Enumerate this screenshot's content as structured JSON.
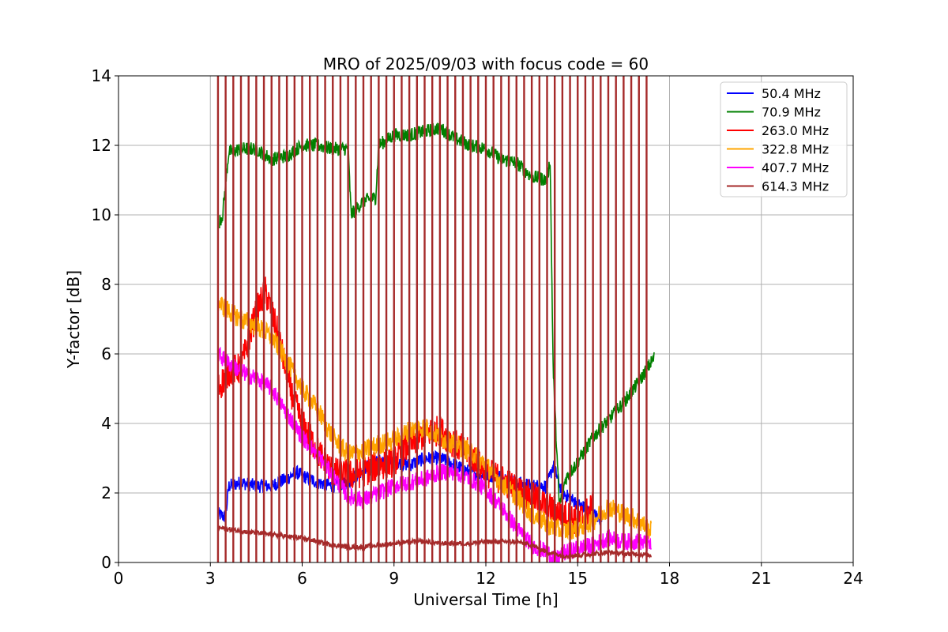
{
  "chart_data": {
    "type": "line",
    "title": "MRO of 2025/09/03 with focus code = 60",
    "xlabel": "Universal Time [h]",
    "ylabel": "Y-factor [dB]",
    "xlim": [
      0,
      24
    ],
    "ylim": [
      0,
      14
    ],
    "xticks": [
      0,
      3,
      6,
      9,
      12,
      15,
      18,
      21,
      24
    ],
    "yticks": [
      0,
      2,
      4,
      6,
      8,
      10,
      12,
      14
    ],
    "grid": true,
    "legend_position": "top-right",
    "spikes": {
      "description_visible": false,
      "start": 3.25,
      "end": 17.35,
      "interval": 0.25,
      "top": 14,
      "color": "#a52a2a"
    },
    "series": [
      {
        "name": " 50.4 MHz",
        "color": "#0000ff",
        "x": [
          3.25,
          3.5,
          3.6,
          4.0,
          4.5,
          5.0,
          5.2,
          5.5,
          5.8,
          6.0,
          6.5,
          7.0,
          7.5,
          8.0,
          8.5,
          9.0,
          9.5,
          10.0,
          10.5,
          11.0,
          11.5,
          12.0,
          12.5,
          13.0,
          13.5,
          14.0,
          14.2,
          14.5,
          15.0,
          15.5,
          15.8
        ],
        "values": [
          1.4,
          1.3,
          2.2,
          2.3,
          2.2,
          2.2,
          2.3,
          2.4,
          2.6,
          2.5,
          2.3,
          2.2,
          2.3,
          2.7,
          2.9,
          2.9,
          2.8,
          3.0,
          3.0,
          2.8,
          2.6,
          2.5,
          2.5,
          2.3,
          2.2,
          2.2,
          2.8,
          2.0,
          1.7,
          1.4,
          1.2
        ],
        "noise": 0.2
      },
      {
        "name": " 70.9 MHz",
        "color": "#008000",
        "x": [
          3.3,
          3.4,
          3.6,
          4.0,
          4.5,
          5.0,
          5.5,
          6.0,
          6.5,
          7.0,
          7.5,
          7.6,
          8.0,
          8.4,
          8.5,
          9.0,
          9.5,
          10.0,
          10.5,
          11.0,
          11.5,
          12.0,
          12.5,
          13.0,
          13.5,
          14.0,
          14.1,
          14.2,
          14.4,
          14.6,
          15.0,
          15.5,
          16.0,
          16.5,
          17.0,
          17.5
        ],
        "values": [
          9.8,
          10.0,
          11.8,
          11.9,
          11.9,
          11.6,
          11.7,
          12.0,
          12.0,
          11.9,
          11.9,
          10.0,
          10.4,
          10.5,
          12.0,
          12.3,
          12.3,
          12.4,
          12.5,
          12.2,
          12.0,
          11.9,
          11.6,
          11.5,
          11.1,
          11.0,
          11.6,
          5.5,
          1.6,
          2.4,
          2.9,
          3.6,
          4.1,
          4.6,
          5.2,
          5.9
        ],
        "noise": 0.2
      },
      {
        "name": " 263.0 MHz",
        "color": "#ff0000",
        "x": [
          3.25,
          3.6,
          4.0,
          4.5,
          4.8,
          5.2,
          5.6,
          6.0,
          6.5,
          7.0,
          7.5,
          8.0,
          8.5,
          9.0,
          9.5,
          10.0,
          10.5,
          11.0,
          11.5,
          12.0,
          12.5,
          13.0,
          13.5,
          14.0,
          14.5,
          15.0,
          15.5
        ],
        "values": [
          5.0,
          5.5,
          5.6,
          7.2,
          7.8,
          6.6,
          5.0,
          4.0,
          3.2,
          2.6,
          2.5,
          2.6,
          2.8,
          2.9,
          3.4,
          3.7,
          3.8,
          3.4,
          3.1,
          2.6,
          2.4,
          2.1,
          1.9,
          1.6,
          1.4,
          1.2,
          1.6
        ],
        "noise": 0.45
      },
      {
        "name": " 322.8 MHz",
        "color": "#ffa500",
        "x": [
          3.25,
          3.5,
          4.0,
          4.5,
          5.0,
          5.5,
          6.0,
          6.5,
          7.0,
          7.5,
          8.0,
          8.5,
          9.0,
          9.5,
          10.0,
          10.5,
          11.0,
          11.5,
          12.0,
          12.5,
          13.0,
          13.5,
          14.0,
          14.5,
          15.0,
          15.5,
          16.0,
          16.5,
          17.0,
          17.4
        ],
        "values": [
          7.5,
          7.3,
          7.0,
          6.8,
          6.5,
          5.8,
          5.0,
          4.4,
          3.6,
          3.1,
          3.2,
          3.4,
          3.5,
          3.8,
          3.9,
          3.6,
          3.4,
          3.2,
          2.8,
          2.3,
          1.9,
          1.4,
          1.1,
          0.9,
          1.0,
          1.2,
          1.6,
          1.4,
          1.2,
          0.9
        ],
        "noise": 0.3
      },
      {
        "name": " 407.7 MHz",
        "color": "#ff00ff",
        "x": [
          3.25,
          3.5,
          4.0,
          4.5,
          5.0,
          5.5,
          6.0,
          6.5,
          7.0,
          7.5,
          8.0,
          8.5,
          9.0,
          9.5,
          10.0,
          10.5,
          11.0,
          11.5,
          12.0,
          12.5,
          13.0,
          13.5,
          14.0,
          14.3,
          14.6,
          15.0,
          15.5,
          16.0,
          16.5,
          17.0,
          17.4
        ],
        "values": [
          6.0,
          5.8,
          5.5,
          5.3,
          5.0,
          4.3,
          3.6,
          3.1,
          2.5,
          1.9,
          1.8,
          2.0,
          2.2,
          2.3,
          2.4,
          2.6,
          2.6,
          2.4,
          2.1,
          1.6,
          1.0,
          0.5,
          0.3,
          0.1,
          0.3,
          0.4,
          0.5,
          0.7,
          0.6,
          0.6,
          0.5
        ],
        "noise": 0.25
      },
      {
        "name": " 614.3 MHz",
        "color": "#a52a2a",
        "x": [
          3.25,
          4.0,
          5.0,
          5.5,
          6.0,
          6.5,
          7.0,
          7.5,
          8.0,
          8.5,
          9.0,
          9.5,
          10.0,
          10.5,
          11.0,
          11.5,
          12.0,
          12.5,
          13.0,
          13.5,
          14.0,
          14.5,
          15.0,
          15.5,
          16.0,
          16.5,
          17.0,
          17.4
        ],
        "values": [
          1.0,
          0.9,
          0.8,
          0.75,
          0.7,
          0.6,
          0.5,
          0.45,
          0.45,
          0.5,
          0.55,
          0.6,
          0.6,
          0.55,
          0.55,
          0.55,
          0.6,
          0.6,
          0.6,
          0.5,
          0.3,
          0.2,
          0.2,
          0.25,
          0.3,
          0.25,
          0.25,
          0.2
        ],
        "noise": 0.07
      }
    ]
  }
}
